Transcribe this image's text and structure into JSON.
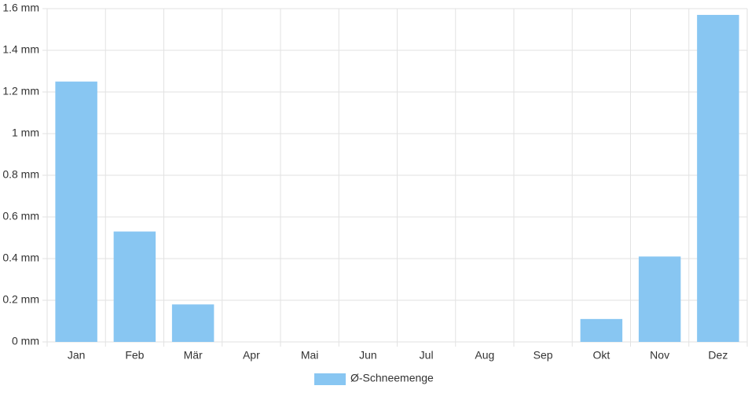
{
  "chart_data": {
    "type": "bar",
    "categories": [
      "Jan",
      "Feb",
      "Mär",
      "Apr",
      "Mai",
      "Jun",
      "Jul",
      "Aug",
      "Sep",
      "Okt",
      "Nov",
      "Dez"
    ],
    "series": [
      {
        "name": "Ø-Schneemenge",
        "color": "#88c6f2",
        "values": [
          1.25,
          0.53,
          0.18,
          0,
          0,
          0,
          0,
          0,
          0,
          0.11,
          0.41,
          1.57
        ]
      }
    ],
    "ylim": [
      0,
      1.6
    ],
    "yticks": [
      {
        "value": 0,
        "label": "0 mm"
      },
      {
        "value": 0.2,
        "label": "0.2 mm"
      },
      {
        "value": 0.4,
        "label": "0.4 mm"
      },
      {
        "value": 0.6,
        "label": "0.6 mm"
      },
      {
        "value": 0.8,
        "label": "0.8 mm"
      },
      {
        "value": 1,
        "label": "1 mm"
      },
      {
        "value": 1.2,
        "label": "1.2 mm"
      },
      {
        "value": 1.4,
        "label": "1.4 mm"
      },
      {
        "value": 1.6,
        "label": "1.6 mm"
      }
    ],
    "grid": true,
    "legend": "bottom"
  }
}
